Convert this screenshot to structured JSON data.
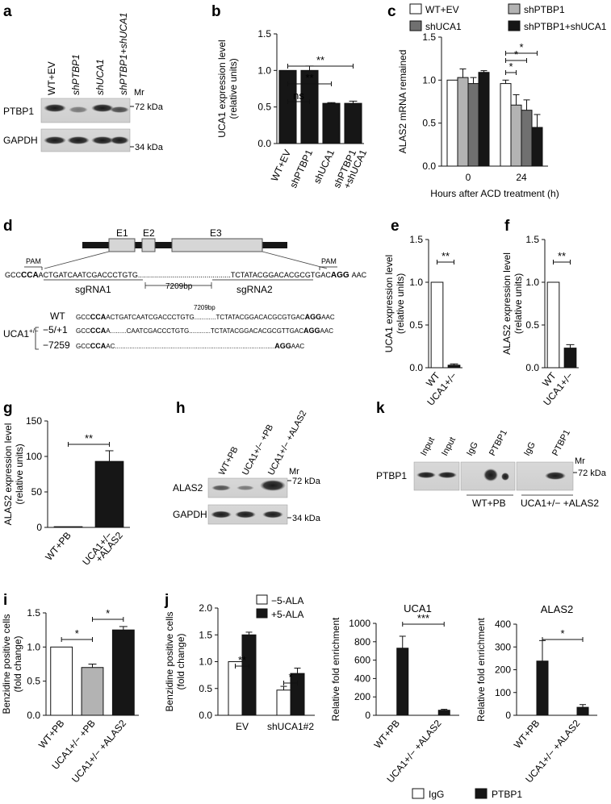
{
  "panels": {
    "a": {
      "letter": "a",
      "lanes": [
        "WT+EV",
        "shPTBP1",
        "shUCA1",
        "shPTBP1+shUCA1"
      ],
      "mr": "Mr",
      "rows": [
        {
          "label": "PTBP1",
          "marker": "72 kDa"
        },
        {
          "label": "GAPDH",
          "marker": "34 kDa"
        }
      ]
    },
    "b": {
      "letter": "b"
    },
    "c": {
      "letter": "c"
    },
    "d": {
      "letter": "d",
      "exons": [
        "E1",
        "E2",
        "E3"
      ],
      "pam_left": "PAM",
      "pam_right": "PAM",
      "seq_left_pre": "GCC",
      "seq_left_pam": "CCA",
      "seq_left_rest": "ACTGATCAATCGACCCTGTG",
      "seq_right_rest": "TCTATACGGACACGCGTGAC",
      "seq_right_pam": "AGG",
      "seq_right_post": "AAC",
      "sg1": "sgRNA1",
      "sg2": "sgRNA2",
      "gap": "7209bp",
      "gap_top": "7209bp",
      "uca1_label": "UCA1",
      "uca1_sup": "+/−",
      "alleles": [
        {
          "name": "WT",
          "pre": "GCC",
          "pam": "CCA",
          "mid": "ACTGATCAATCGACCCTGTG",
          "dots": "............",
          "right": "TCTATACGGACACGCGTGAC",
          "pam2": "AGG",
          "post": "AAC"
        },
        {
          "name": "−5/+1",
          "pre": "GCC",
          "pam": "CCA",
          "mid": "A.........CAATCGACCCTGTG",
          "dots": "............",
          "right": "TCTATACGGACACGCGTTGAC",
          "pam2": "AGG",
          "post": "AAC"
        },
        {
          "name": "−7259",
          "pre": "GCC",
          "pam": "CCA",
          "mid": "AC",
          "dots": ".........................................................................................",
          "right": "",
          "pam2": "AGG",
          "post": "AAC"
        }
      ]
    },
    "e": {
      "letter": "e"
    },
    "f": {
      "letter": "f"
    },
    "g": {
      "letter": "g"
    },
    "h": {
      "letter": "h",
      "lanes": [
        "WT+PB",
        "UCA1+/− +PB",
        "UCA1+/− +ALAS2"
      ],
      "mr": "Mr",
      "rows": [
        {
          "label": "ALAS2",
          "marker": "72 kDa"
        },
        {
          "label": "GAPDH",
          "marker": "34 kDa"
        }
      ]
    },
    "k": {
      "letter": "k",
      "lanes": [
        "Input",
        "Input",
        "IgG",
        "PTBP1",
        "IgG",
        "PTBP1"
      ],
      "mr": "Mr",
      "row_label": "PTBP1",
      "marker": "72 kDa",
      "group1": "WT+PB",
      "group2": "UCA1+/− +ALAS2"
    },
    "i": {
      "letter": "i"
    },
    "j": {
      "letter": "j"
    },
    "ripLegend": {
      "igg": "IgG",
      "ptbp1": "PTBP1"
    }
  },
  "chart_data": [
    {
      "id": "b",
      "type": "bar",
      "categories": [
        "WT+EV",
        "shPTBP1",
        "shUCA1",
        "shPTBP1\n+shUCA1"
      ],
      "values": [
        1.0,
        1.0,
        0.55,
        0.55
      ],
      "errors": [
        0,
        0.06,
        0.01,
        0.03
      ],
      "ylabel": "UCA1 expression level\n(relative units)",
      "ylim": [
        0,
        1.5
      ],
      "yticks": [
        "0.0",
        "0.5",
        "1.0",
        "1.5"
      ],
      "sig": [
        {
          "from": 0,
          "to": 1,
          "label": "ns"
        },
        {
          "from": 0,
          "to": 2,
          "label": "**"
        },
        {
          "from": 0,
          "to": 3,
          "label": "**"
        }
      ]
    },
    {
      "id": "c",
      "type": "bar",
      "categories": [
        "0",
        "24"
      ],
      "series": [
        {
          "name": "WT+EV",
          "values": [
            1.0,
            0.96
          ],
          "errors": [
            0,
            0.04
          ],
          "color": "#ffffff"
        },
        {
          "name": "shPTBP1",
          "values": [
            1.03,
            0.71
          ],
          "errors": [
            0.1,
            0.12
          ],
          "color": "#b3b3b3"
        },
        {
          "name": "shUCA1",
          "values": [
            0.96,
            0.65
          ],
          "errors": [
            0.07,
            0.12
          ],
          "color": "#707070"
        },
        {
          "name": "shPTBP1+shUCA1",
          "values": [
            1.09,
            0.45
          ],
          "errors": [
            0.02,
            0.15
          ],
          "color": "#161616"
        }
      ],
      "xlabel": "Hours after ACD treatment (h)",
      "ylabel": "ALAS2 mRNA remained",
      "ylim": [
        0,
        1.5
      ],
      "yticks": [
        "0.0",
        "0.5",
        "1.0",
        "1.5"
      ],
      "sig": [
        {
          "label": "*"
        },
        {
          "label": "*"
        },
        {
          "label": "*"
        }
      ]
    },
    {
      "id": "e",
      "type": "bar",
      "categories": [
        "WT",
        "UCA1+/−"
      ],
      "values": [
        1.0,
        0.03
      ],
      "errors": [
        0,
        0.015
      ],
      "colors": [
        "#ffffff",
        "#161616"
      ],
      "ylabel": "UCA1 expression level\n(relative units)",
      "ylim": [
        0,
        1.5
      ],
      "yticks": [
        "0.0",
        "0.5",
        "1.0",
        "1.5"
      ],
      "sig": [
        {
          "from": 0,
          "to": 1,
          "label": "**"
        }
      ]
    },
    {
      "id": "f",
      "type": "bar",
      "categories": [
        "WT",
        "UCA1+/−"
      ],
      "values": [
        1.0,
        0.23
      ],
      "errors": [
        0,
        0.04
      ],
      "colors": [
        "#ffffff",
        "#161616"
      ],
      "ylabel": "ALAS2 expression level\n(relative units)",
      "ylim": [
        0,
        1.5
      ],
      "yticks": [
        "0.0",
        "0.5",
        "1.0",
        "1.5"
      ],
      "sig": [
        {
          "from": 0,
          "to": 1,
          "label": "**"
        }
      ]
    },
    {
      "id": "g",
      "type": "bar",
      "categories": [
        "WT+PB",
        "UCA1+/−\n+ALAS2"
      ],
      "values": [
        1,
        93
      ],
      "errors": [
        0,
        15
      ],
      "colors": [
        "#ffffff",
        "#161616"
      ],
      "ylabel": "ALAS2 expression level\n(relative units)",
      "ylim": [
        0,
        150
      ],
      "yticks": [
        "0",
        "50",
        "100",
        "150"
      ],
      "sig": [
        {
          "from": 0,
          "to": 1,
          "label": "**"
        }
      ]
    },
    {
      "id": "i",
      "type": "bar",
      "categories": [
        "WT+PB",
        "UCA1+/− +PB",
        "UCA1+/− +ALAS2"
      ],
      "values": [
        1.0,
        0.7,
        1.25
      ],
      "errors": [
        0,
        0.05,
        0.05
      ],
      "colors": [
        "#ffffff",
        "#b3b3b3",
        "#161616"
      ],
      "ylabel": "Benzidine positive cells\n(fold change)",
      "ylim": [
        0,
        1.5
      ],
      "yticks": [
        "0.0",
        "0.5",
        "1.0",
        "1.5"
      ],
      "sig": [
        {
          "from": 0,
          "to": 1,
          "label": "*"
        },
        {
          "from": 1,
          "to": 2,
          "label": "*"
        }
      ]
    },
    {
      "id": "j",
      "type": "bar",
      "categories": [
        "EV",
        "shUCA1#2"
      ],
      "series": [
        {
          "name": "−5-ALA",
          "values": [
            1.0,
            0.47
          ],
          "errors": [
            0,
            0.07
          ],
          "color": "#ffffff"
        },
        {
          "name": "+5-ALA",
          "values": [
            1.5,
            0.78
          ],
          "errors": [
            0.05,
            0.1
          ],
          "color": "#161616"
        }
      ],
      "ylabel": "Benzidine positive cells\n(fold change)",
      "ylim": [
        0,
        2.0
      ],
      "yticks": [
        "0.0",
        "0.5",
        "1.0",
        "1.5",
        "2.0"
      ],
      "sig": [
        {
          "label": "**"
        },
        {
          "label": "*"
        }
      ]
    },
    {
      "id": "rip1",
      "type": "bar",
      "title": "UCA1",
      "categories": [
        "WT+PB",
        "UCA1+/− +ALAS2"
      ],
      "series": [
        {
          "name": "IgG",
          "values": [
            0,
            0
          ],
          "color": "#ffffff"
        },
        {
          "name": "PTBP1",
          "values": [
            730,
            55
          ],
          "errors": [
            130,
            10
          ],
          "color": "#161616"
        }
      ],
      "ylabel": "Relative fold enrichment",
      "ylim": [
        0,
        1000
      ],
      "yticks": [
        "0",
        "200",
        "400",
        "600",
        "800",
        "1000"
      ],
      "sig": [
        {
          "label": "***"
        }
      ]
    },
    {
      "id": "rip2",
      "type": "bar",
      "title": "ALAS2",
      "categories": [
        "WT+PB",
        "UCA1+/− +ALAS2"
      ],
      "series": [
        {
          "name": "IgG",
          "values": [
            0,
            0
          ],
          "color": "#ffffff"
        },
        {
          "name": "PTBP1",
          "values": [
            238,
            35
          ],
          "errors": [
            90,
            12
          ],
          "color": "#161616"
        }
      ],
      "ylabel": "Relative fold enrichment",
      "ylim": [
        0,
        400
      ],
      "yticks": [
        "0",
        "100",
        "200",
        "300",
        "400"
      ],
      "sig": [
        {
          "label": "*"
        }
      ]
    }
  ]
}
